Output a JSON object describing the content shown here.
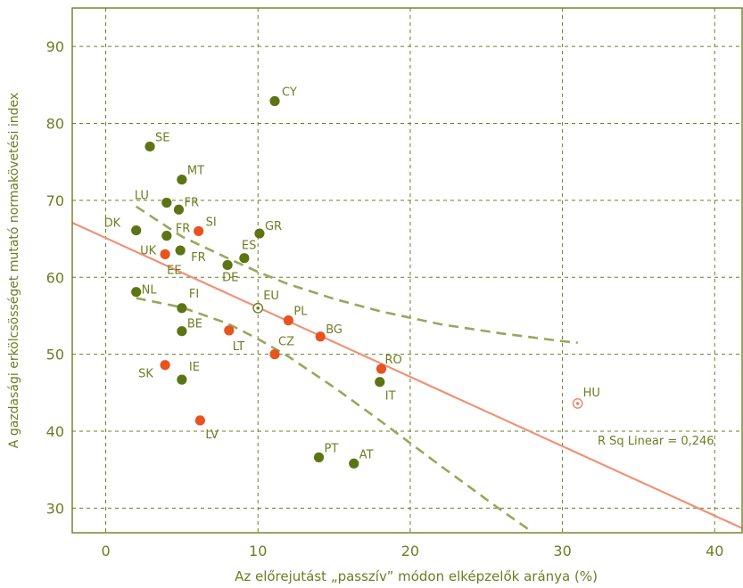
{
  "chart_data": {
    "type": "scatter",
    "title": "",
    "xlabel": "Az előrejutást „passzív” módon elképzelők aránya (%)",
    "ylabel": "A gazdasági erkölcsösséget mutató normakövetési index",
    "xlim": [
      -2.2,
      41.8
    ],
    "ylim": [
      26.8,
      95.0
    ],
    "x_ticks": [
      0,
      10,
      20,
      30,
      40
    ],
    "y_ticks": [
      30,
      40,
      50,
      60,
      70,
      80,
      90
    ],
    "grid": true,
    "annotation": "R Sq Linear =  0,246",
    "colors": {
      "frame": "#6e7d23",
      "grid": "#6e7d23",
      "green_point": "#5d7414",
      "orange_point": "#e8531f",
      "hollow_point": "#6e7d23",
      "hu_point": "#e88a6a",
      "fit_line": "#ee9377",
      "ci_band": "#96a85c",
      "text": "#6e7d23"
    },
    "fit_line": {
      "x": [
        -2.2,
        41.8
      ],
      "y": [
        67.1,
        27.4
      ]
    },
    "ci_upper": {
      "x": [
        2.0,
        5.0,
        8.0,
        10.0,
        12.0,
        15.0,
        18.0,
        22.0,
        26.0,
        30.0,
        31.0
      ],
      "y": [
        69.2,
        65.3,
        62.5,
        60.7,
        59.1,
        57.2,
        55.6,
        53.9,
        52.7,
        51.7,
        51.5
      ]
    },
    "ci_lower": {
      "x": [
        2.0,
        5.0,
        8.0,
        10.0,
        12.0,
        15.0,
        18.0,
        22.0,
        26.0,
        27.8
      ],
      "y": [
        57.3,
        56.1,
        54.0,
        52.0,
        49.7,
        45.7,
        41.4,
        35.5,
        29.7,
        27.2
      ]
    },
    "series": [
      {
        "points": [
          {
            "label": "CY",
            "x": 11.1,
            "y": 82.9
          },
          {
            "label": "SE",
            "x": 2.9,
            "y": 77.0
          },
          {
            "label": "MT",
            "x": 5.0,
            "y": 72.7
          },
          {
            "label": "LU",
            "x": 4.0,
            "y": 69.7
          },
          {
            "label": "FR",
            "x": 4.8,
            "y": 68.8
          },
          {
            "label": "DK",
            "x": 2.0,
            "y": 66.1
          },
          {
            "label": "GR",
            "x": 10.1,
            "y": 65.7
          },
          {
            "label": "FR",
            "x": 4.0,
            "y": 65.4
          },
          {
            "label": "FR",
            "x": 4.9,
            "y": 63.5
          },
          {
            "label": "ES",
            "x": 9.1,
            "y": 62.5
          },
          {
            "label": "DE",
            "x": 8.0,
            "y": 61.6
          },
          {
            "label": "NL",
            "x": 2.0,
            "y": 58.1
          },
          {
            "label": "FI",
            "x": 5.0,
            "y": 56.0
          },
          {
            "label": "BE",
            "x": 5.0,
            "y": 53.0
          },
          {
            "label": "IE",
            "x": 5.0,
            "y": 46.7
          },
          {
            "label": "IT",
            "x": 18.0,
            "y": 46.4
          },
          {
            "label": "PT",
            "x": 14.0,
            "y": 36.6
          },
          {
            "label": "AT",
            "x": 16.3,
            "y": 35.8
          }
        ]
      },
      {
        "points": [
          {
            "label": "SI",
            "x": 6.1,
            "y": 66.0
          },
          {
            "label": "UK",
            "x": 3.9,
            "y": 63.0
          },
          {
            "label": "PL",
            "x": 12.0,
            "y": 54.4
          },
          {
            "label": "BG",
            "x": 14.1,
            "y": 52.3
          },
          {
            "label": "LT",
            "x": 8.1,
            "y": 53.1
          },
          {
            "label": "CZ",
            "x": 11.1,
            "y": 50.0
          },
          {
            "label": "RO",
            "x": 18.1,
            "y": 48.1
          },
          {
            "label": "SK",
            "x": 3.9,
            "y": 48.6
          },
          {
            "label": "LV",
            "x": 6.2,
            "y": 41.4
          }
        ]
      },
      {
        "points": [
          {
            "label": "EU",
            "x": 10.0,
            "y": 56.0
          },
          {
            "label": "HU",
            "x": 31.0,
            "y": 43.6
          }
        ]
      }
    ],
    "extra_labels": [
      {
        "label": "EE",
        "x": 3.9,
        "y": 63.0
      }
    ]
  }
}
